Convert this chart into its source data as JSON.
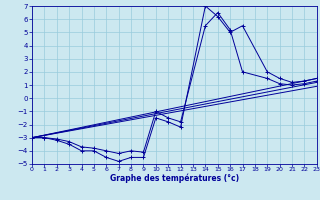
{
  "title": "Graphe des températures (°c)",
  "bg_color": "#cce8f0",
  "grid_color": "#99ccdd",
  "line_color": "#000099",
  "xlim": [
    0,
    23
  ],
  "ylim": [
    -5,
    7
  ],
  "ytick_vals": [
    -5,
    -4,
    -3,
    -2,
    -1,
    0,
    1,
    2,
    3,
    4,
    5,
    6,
    7
  ],
  "xtick_vals": [
    0,
    1,
    2,
    3,
    4,
    5,
    6,
    7,
    8,
    9,
    10,
    11,
    12,
    13,
    14,
    15,
    16,
    17,
    18,
    19,
    20,
    21,
    22,
    23
  ],
  "curve1_x": [
    0,
    1,
    2,
    3,
    4,
    5,
    6,
    7,
    8,
    9,
    10,
    11,
    12,
    14,
    15,
    16,
    17,
    19,
    20,
    21,
    22,
    23
  ],
  "curve1_y": [
    -3.0,
    -3.0,
    -3.2,
    -3.5,
    -4.0,
    -4.0,
    -4.5,
    -4.8,
    -4.5,
    -4.5,
    -1.5,
    -1.8,
    -2.2,
    7.0,
    6.2,
    5.0,
    5.5,
    2.0,
    1.5,
    1.2,
    1.3,
    1.5
  ],
  "curve2_x": [
    0,
    1,
    2,
    3,
    4,
    5,
    6,
    7,
    8,
    9,
    10,
    11,
    12,
    14,
    15,
    16,
    17,
    19,
    20,
    21,
    22,
    23
  ],
  "curve2_y": [
    -3.0,
    -3.0,
    -3.1,
    -3.3,
    -3.7,
    -3.8,
    -4.0,
    -4.2,
    -4.0,
    -4.1,
    -1.0,
    -1.5,
    -1.8,
    5.5,
    6.5,
    5.2,
    2.0,
    1.5,
    1.1,
    1.0,
    1.1,
    1.3
  ],
  "trend_lines": [
    {
      "x": [
        0,
        23
      ],
      "y": [
        -3.0,
        1.5
      ]
    },
    {
      "x": [
        0,
        23
      ],
      "y": [
        -3.0,
        1.2
      ]
    },
    {
      "x": [
        0,
        23
      ],
      "y": [
        -3.0,
        0.9
      ]
    }
  ]
}
